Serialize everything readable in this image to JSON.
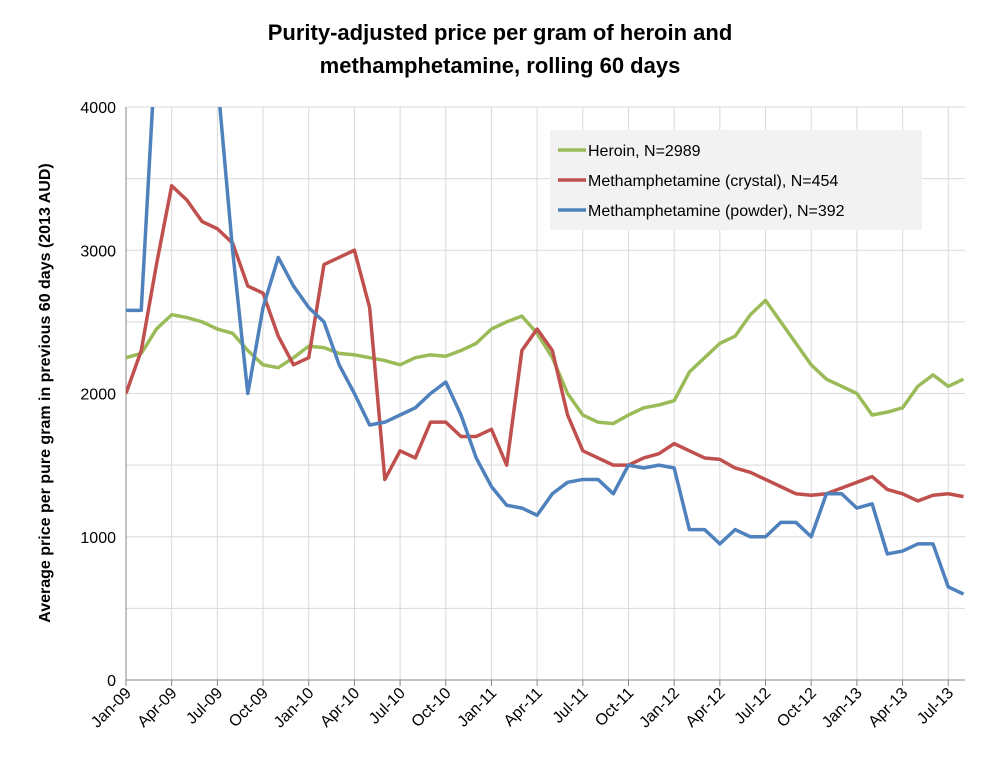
{
  "chart_data": {
    "type": "line",
    "title": [
      "Purity-adjusted price per gram of heroin and",
      "methamphetamine, rolling 60 days"
    ],
    "y_label": "Average price per pure gram in previous 60 days (2013 AUD)",
    "x": [
      0,
      1,
      2,
      3,
      4,
      5,
      6,
      7,
      8,
      9,
      10,
      11,
      12,
      13,
      14,
      15,
      16,
      17,
      18,
      19,
      20,
      21,
      22,
      23,
      24,
      25,
      26,
      27,
      28,
      29,
      30,
      31,
      32,
      33,
      34,
      35,
      36,
      37,
      38,
      39,
      40,
      41,
      42,
      43,
      44,
      45,
      46,
      47,
      48,
      49,
      50,
      51,
      52,
      53,
      54,
      55
    ],
    "xlim": [
      0,
      55.1
    ],
    "xticks": [
      {
        "value": 0,
        "label": "Jan-09"
      },
      {
        "value": 3,
        "label": "Apr-09"
      },
      {
        "value": 6,
        "label": "Jul-09"
      },
      {
        "value": 9,
        "label": "Oct-09"
      },
      {
        "value": 12,
        "label": "Jan-10"
      },
      {
        "value": 15,
        "label": "Apr-10"
      },
      {
        "value": 18,
        "label": "Jul-10"
      },
      {
        "value": 21,
        "label": "Oct-10"
      },
      {
        "value": 24,
        "label": "Jan-11"
      },
      {
        "value": 27,
        "label": "Apr-11"
      },
      {
        "value": 30,
        "label": "Jul-11"
      },
      {
        "value": 33,
        "label": "Oct-11"
      },
      {
        "value": 36,
        "label": "Jan-12"
      },
      {
        "value": 39,
        "label": "Apr-12"
      },
      {
        "value": 42,
        "label": "Jul-12"
      },
      {
        "value": 45,
        "label": "Oct-12"
      },
      {
        "value": 48,
        "label": "Jan-13"
      },
      {
        "value": 51,
        "label": "Apr-13"
      },
      {
        "value": 54,
        "label": "Jul-13"
      }
    ],
    "ylim": [
      0,
      4000
    ],
    "yticks": [
      0,
      1000,
      2000,
      3000,
      4000
    ],
    "minor_yticks": [
      500,
      1500,
      2500,
      3500
    ],
    "grid": true,
    "legend": "top-right",
    "series": [
      {
        "name": "Heroin, N=2989",
        "color": "#9bbb59",
        "values": [
          2250,
          2280,
          2450,
          2550,
          2530,
          2500,
          2450,
          2420,
          2300,
          2200,
          2180,
          2250,
          2330,
          2320,
          2280,
          2270,
          2250,
          2230,
          2200,
          2250,
          2270,
          2260,
          2300,
          2350,
          2450,
          2500,
          2540,
          2420,
          2250,
          2000,
          1850,
          1800,
          1790,
          1850,
          1900,
          1920,
          1950,
          2150,
          2250,
          2350,
          2400,
          2550,
          2650,
          2500,
          2350,
          2200,
          2100,
          2050,
          2000,
          1850,
          1870,
          1900,
          2050,
          2130,
          2050,
          2100
        ]
      },
      {
        "name": "Methamphetamine (crystal), N=454",
        "color": "#c0504d",
        "values": [
          2000,
          2300,
          2900,
          3450,
          3350,
          3200,
          3150,
          3050,
          2750,
          2700,
          2400,
          2200,
          2250,
          2900,
          2950,
          3000,
          2600,
          1400,
          1600,
          1550,
          1800,
          1800,
          1700,
          1700,
          1750,
          1500,
          2300,
          2450,
          2300,
          1850,
          1600,
          1550,
          1500,
          1500,
          1550,
          1580,
          1650,
          1600,
          1550,
          1540,
          1480,
          1450,
          1400,
          1350,
          1300,
          1290,
          1300,
          1340,
          1380,
          1420,
          1330,
          1300,
          1250,
          1290,
          1300,
          1280
        ]
      },
      {
        "name": "Methamphetamine (powder), N=392",
        "color": "#4f81bd",
        "values": [
          2580,
          2580,
          4500,
          4500,
          4500,
          4500,
          4200,
          3000,
          2000,
          2600,
          2950,
          2750,
          2600,
          2500,
          2200,
          2000,
          1780,
          1800,
          1850,
          1900,
          2000,
          2080,
          1850,
          1550,
          1350,
          1220,
          1200,
          1150,
          1300,
          1380,
          1400,
          1400,
          1300,
          1500,
          1480,
          1500,
          1480,
          1050,
          1050,
          950,
          1050,
          1000,
          1000,
          1100,
          1100,
          1000,
          1300,
          1300,
          1200,
          1230,
          880,
          900,
          950,
          950,
          650,
          600
        ]
      }
    ]
  }
}
